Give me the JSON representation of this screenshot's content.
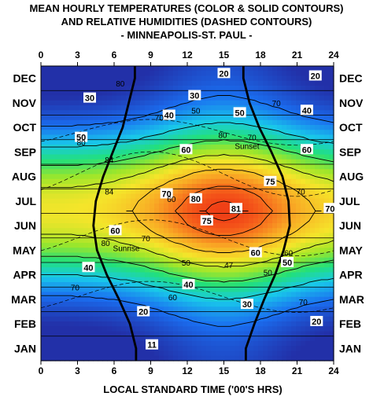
{
  "title_lines": [
    "MEAN HOURLY TEMPERATURES (COLOR & SOLID CONTOURS)",
    "AND RELATIVE HUMIDITIES (DASHED CONTOURS)",
    "- MINNEAPOLIS-ST. PAUL -"
  ],
  "chart_data": {
    "type": "heatmap",
    "title": "MEAN HOURLY TEMPERATURES (COLOR & SOLID CONTOURS) AND RELATIVE HUMIDITIES (DASHED CONTOURS) - MINNEAPOLIS-ST. PAUL -",
    "xlabel": "LOCAL STANDARD TIME ('00'S HRS)",
    "ylabel": "",
    "x_ticks": [
      "0",
      "3",
      "6",
      "9",
      "12",
      "15",
      "18",
      "21",
      "24"
    ],
    "x_tick_values": [
      0,
      3,
      6,
      9,
      12,
      15,
      18,
      21,
      24
    ],
    "xlim": [
      0,
      24
    ],
    "months": [
      "JAN",
      "FEB",
      "MAR",
      "APR",
      "MAY",
      "JUN",
      "JUL",
      "AUG",
      "SEP",
      "OCT",
      "NOV",
      "DEC"
    ],
    "month_labels_bottom_to_top": [
      "JAN",
      "FEB",
      "MAR",
      "APR",
      "MAY",
      "JUN",
      "JUL",
      "AUG",
      "SEP",
      "OCT",
      "NOV",
      "DEC"
    ],
    "temperature_contour_labels": [
      {
        "value": "20",
        "hour": 15,
        "month_pos": 11.7
      },
      {
        "value": "20",
        "hour": 22.5,
        "month_pos": 11.6
      },
      {
        "value": "30",
        "hour": 4.0,
        "month_pos": 10.7
      },
      {
        "value": "30",
        "hour": 12.6,
        "month_pos": 10.8
      },
      {
        "value": "40",
        "hour": 10.5,
        "month_pos": 10.0
      },
      {
        "value": "40",
        "hour": 21.8,
        "month_pos": 10.2
      },
      {
        "value": "50",
        "hour": 3.3,
        "month_pos": 9.1
      },
      {
        "value": "50",
        "hour": 16.3,
        "month_pos": 10.1
      },
      {
        "value": "60",
        "hour": 11.9,
        "month_pos": 8.6
      },
      {
        "value": "60",
        "hour": 21.8,
        "month_pos": 8.6
      },
      {
        "value": "70",
        "hour": 10.3,
        "month_pos": 6.8
      },
      {
        "value": "70",
        "hour": 23.7,
        "month_pos": 6.2
      },
      {
        "value": "75",
        "hour": 18.8,
        "month_pos": 7.3
      },
      {
        "value": "75",
        "hour": 13.6,
        "month_pos": 5.7
      },
      {
        "value": "80",
        "hour": 12.7,
        "month_pos": 6.6
      },
      {
        "value": "81",
        "hour": 16.0,
        "month_pos": 6.2
      },
      {
        "value": "60",
        "hour": 6.1,
        "month_pos": 5.3
      },
      {
        "value": "60",
        "hour": 17.6,
        "month_pos": 4.4
      },
      {
        "value": "50",
        "hour": 20.2,
        "month_pos": 4.0
      },
      {
        "value": "40",
        "hour": 3.9,
        "month_pos": 3.8
      },
      {
        "value": "40",
        "hour": 12.1,
        "month_pos": 3.1
      },
      {
        "value": "30",
        "hour": 16.9,
        "month_pos": 2.3
      },
      {
        "value": "20",
        "hour": 8.4,
        "month_pos": 2.0
      },
      {
        "value": "20",
        "hour": 22.6,
        "month_pos": 1.6
      },
      {
        "value": "11",
        "hour": 9.1,
        "month_pos": 0.65
      }
    ],
    "humidity_contour_labels": [
      {
        "value": "80",
        "hour": 6.5,
        "month_pos": 11.3
      },
      {
        "value": "70",
        "hour": 19.3,
        "month_pos": 10.5
      },
      {
        "value": "70",
        "hour": 9.7,
        "month_pos": 9.9
      },
      {
        "value": "50",
        "hour": 12.7,
        "month_pos": 10.2
      },
      {
        "value": "80",
        "hour": 3.3,
        "month_pos": 8.9
      },
      {
        "value": "84",
        "hour": 5.6,
        "month_pos": 8.2
      },
      {
        "value": "84",
        "hour": 5.6,
        "month_pos": 6.9
      },
      {
        "value": "80",
        "hour": 14.9,
        "month_pos": 9.2
      },
      {
        "value": "70",
        "hour": 17.3,
        "month_pos": 9.1
      },
      {
        "value": "60",
        "hour": 10.7,
        "month_pos": 6.6
      },
      {
        "value": "70",
        "hour": 21.3,
        "month_pos": 6.9
      },
      {
        "value": "70",
        "hour": 8.6,
        "month_pos": 5.0
      },
      {
        "value": "80",
        "hour": 5.3,
        "month_pos": 4.8
      },
      {
        "value": "50",
        "hour": 11.9,
        "month_pos": 4.0
      },
      {
        "value": "47",
        "hour": 15.4,
        "month_pos": 3.9
      },
      {
        "value": "60",
        "hour": 20.3,
        "month_pos": 4.4
      },
      {
        "value": "50",
        "hour": 18.6,
        "month_pos": 3.6
      },
      {
        "value": "70",
        "hour": 2.8,
        "month_pos": 3.0
      },
      {
        "value": "60",
        "hour": 10.8,
        "month_pos": 2.6
      },
      {
        "value": "70",
        "hour": 21.5,
        "month_pos": 2.4
      }
    ],
    "annotations": [
      {
        "text": "Sunset",
        "hour": 16.9,
        "month_pos": 8.75
      },
      {
        "text": "Sunrise",
        "hour": 7.0,
        "month_pos": 4.6
      }
    ],
    "sunrise_hours_by_month": [
      7.8,
      7.3,
      6.4,
      5.4,
      4.6,
      4.3,
      4.5,
      5.1,
      5.9,
      6.7,
      7.2,
      7.7
    ],
    "sunset_hours_by_month": [
      16.8,
      17.5,
      18.3,
      19.2,
      19.9,
      20.4,
      20.3,
      19.8,
      18.9,
      17.9,
      17.1,
      16.6
    ],
    "colormap": [
      "#2230a8",
      "#1a6ef0",
      "#19c8ea",
      "#22e07a",
      "#9ee62a",
      "#f5e52a",
      "#f9ab25",
      "#f55a1a",
      "#e71a10"
    ],
    "temperature_range": [
      11,
      81
    ]
  }
}
